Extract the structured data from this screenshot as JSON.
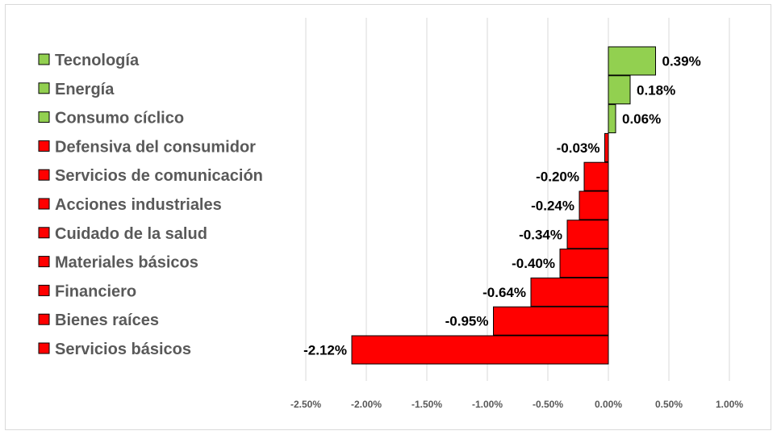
{
  "chart_data": {
    "type": "bar",
    "orientation": "horizontal",
    "categories": [
      "Tecnología",
      "Energía",
      "Consumo cíclico",
      "Defensiva del consumidor",
      "Servicios de comunicación",
      "Acciones industriales",
      "Cuidado de la salud",
      "Materiales básicos",
      "Financiero",
      "Bienes raíces",
      "Servicios básicos"
    ],
    "values": [
      0.39,
      0.18,
      0.06,
      -0.03,
      -0.2,
      -0.24,
      -0.34,
      -0.4,
      -0.64,
      -0.95,
      -2.12
    ],
    "data_labels": [
      "0.39%",
      "0.18%",
      "0.06%",
      "-0.03%",
      "-0.20%",
      "-0.24%",
      "-0.34%",
      "-0.40%",
      "-0.64%",
      "-0.95%",
      "-2.12%"
    ],
    "xlim": [
      -2.5,
      1.0
    ],
    "xticks": [
      -2.5,
      -2.0,
      -1.5,
      -1.0,
      -0.5,
      0.0,
      0.5,
      1.0
    ],
    "xtick_labels": [
      "-2.50%",
      "-2.00%",
      "-1.50%",
      "-1.00%",
      "-0.50%",
      "0.00%",
      "0.50%",
      "1.00%"
    ],
    "title": "",
    "xlabel": "",
    "ylabel": "",
    "grid": "vertical",
    "legend_position": "left",
    "colors": {
      "positive": "#92d050",
      "negative": "#ff0000",
      "bar_outline": "#000000",
      "gridline": "#d9d9d9",
      "legend_text": "#595959",
      "tick_text": "#595959"
    }
  }
}
